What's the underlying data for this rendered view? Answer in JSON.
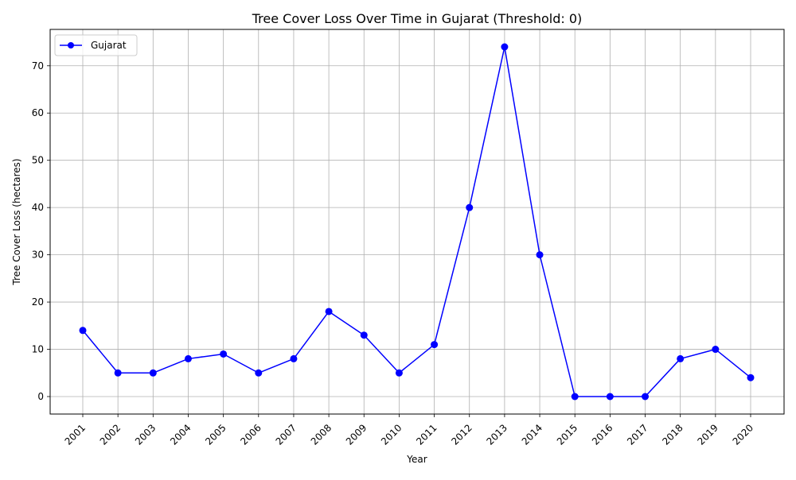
{
  "chart_data": {
    "type": "line",
    "title": "Tree Cover Loss Over Time in Gujarat (Threshold: 0)",
    "xlabel": "Year",
    "ylabel": "Tree Cover Loss (hectares)",
    "categories": [
      "2001",
      "2002",
      "2003",
      "2004",
      "2005",
      "2006",
      "2007",
      "2008",
      "2009",
      "2010",
      "2011",
      "2012",
      "2013",
      "2014",
      "2015",
      "2016",
      "2017",
      "2018",
      "2019",
      "2020"
    ],
    "series": [
      {
        "name": "Gujarat",
        "color": "#0000ff",
        "marker": "circle",
        "values": [
          14,
          5,
          5,
          8,
          9,
          5,
          8,
          18,
          13,
          5,
          11,
          40,
          74,
          30,
          0,
          0,
          0,
          8,
          10,
          4
        ]
      }
    ],
    "ylim": [
      -3.7,
      77.7
    ],
    "yticks": [
      0,
      10,
      20,
      30,
      40,
      50,
      60,
      70
    ],
    "grid": true,
    "legend_position": "top-left",
    "x_tick_rotation_deg": 45
  }
}
